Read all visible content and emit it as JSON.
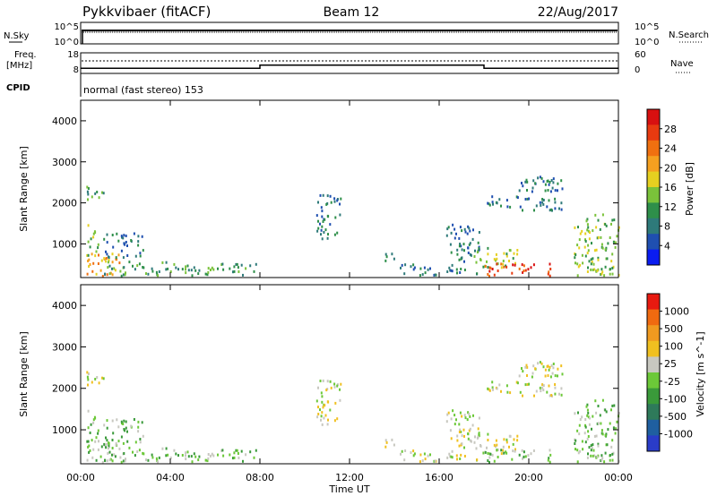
{
  "header": {
    "station": "Pykkvibaer (fitACF)",
    "beam": "Beam 12",
    "date": "22/Aug/2017"
  },
  "noise_panel": {
    "left_label": "N.Sky",
    "left_ticks": [
      "10^5",
      "10^0"
    ],
    "right_label": "N.Search",
    "right_ticks": [
      "10^5",
      "10^0"
    ]
  },
  "freq_panel": {
    "left_label_1": "Freq.",
    "left_label_2": "[MHz]",
    "left_ticks": [
      "18",
      "8"
    ],
    "right_label": "Nave",
    "right_ticks": [
      "60",
      "0"
    ],
    "cpid_label": "CPID"
  },
  "cpid_text": "normal (fast stereo) 153",
  "x_axis": {
    "title": "Time UT",
    "ticks": [
      "00:00",
      "04:00",
      "08:00",
      "12:00",
      "16:00",
      "20:00",
      "00:00"
    ]
  },
  "power_panel": {
    "ylabel": "Slant Range [km]",
    "yticks": [
      "4000",
      "3000",
      "2000",
      "1000"
    ],
    "colorbar_label": "Power [dB]",
    "colorbar_ticks": [
      "28",
      "24",
      "20",
      "16",
      "12",
      "8",
      "4"
    ],
    "colors": [
      "#0a1cf0",
      "#1f4fb0",
      "#2e7a7a",
      "#2e8f4a",
      "#7ac23a",
      "#e6d020",
      "#f5a020",
      "#f07010",
      "#e83a10",
      "#d81010"
    ]
  },
  "velocity_panel": {
    "ylabel": "Slant Range [km]",
    "yticks": [
      "4000",
      "3000",
      "2000",
      "1000"
    ],
    "colorbar_label": "Velocity [m s^-1]",
    "colorbar_ticks": [
      "1000",
      "500",
      "100",
      "25",
      "-25",
      "-100",
      "-500",
      "-1000"
    ],
    "colors": [
      "#2a3cc8",
      "#1f5fa0",
      "#2e7a5a",
      "#3a9a3a",
      "#6cc838",
      "#c8c8c0",
      "#f0c020",
      "#f09a20",
      "#f06a10",
      "#e81a10"
    ]
  },
  "chart_data": {
    "type": "heatmap",
    "x_range_hours": [
      0,
      24
    ],
    "y_range_km": [
      180,
      4500
    ],
    "freq_range_mhz": [
      8,
      18
    ],
    "nave_range": [
      0,
      60
    ],
    "frequency_steps": [
      {
        "x_hours": 0,
        "freq_mhz": 10.5
      },
      {
        "x_hours": 8.0,
        "freq_mhz": 12.0
      },
      {
        "x_hours": 18.0,
        "freq_mhz": 10.5
      }
    ],
    "power_scale_db": [
      0,
      30
    ],
    "velocity_scale_ms": [
      -1000,
      1000
    ],
    "scatter_regions": [
      {
        "t0": 0.0,
        "t1": 1.7,
        "r0": 200,
        "r1": 750,
        "power": 18,
        "velocity": -80
      },
      {
        "t0": 0.2,
        "t1": 1.0,
        "r0": 2050,
        "r1": 2450,
        "power": 10,
        "velocity": 0
      },
      {
        "t0": 0.3,
        "t1": 0.8,
        "r0": 700,
        "r1": 1500,
        "power": 12,
        "velocity": -30
      },
      {
        "t0": 1.0,
        "t1": 2.8,
        "r0": 650,
        "r1": 1250,
        "power": 8,
        "velocity": -60
      },
      {
        "t0": 1.0,
        "t1": 4.0,
        "r0": 200,
        "r1": 550,
        "power": 10,
        "velocity": -90
      },
      {
        "t0": 4.0,
        "t1": 8.0,
        "r0": 200,
        "r1": 500,
        "power": 10,
        "velocity": -70
      },
      {
        "t0": 10.5,
        "t1": 11.6,
        "r0": 1100,
        "r1": 2200,
        "power": 6,
        "velocity": 0
      },
      {
        "t0": 13.5,
        "t1": 14.0,
        "r0": 500,
        "r1": 800,
        "power": 8,
        "velocity": 60
      },
      {
        "t0": 14.2,
        "t1": 16.0,
        "r0": 200,
        "r1": 500,
        "power": 6,
        "velocity": 20
      },
      {
        "t0": 16.3,
        "t1": 17.8,
        "r0": 250,
        "r1": 1450,
        "power": 8,
        "velocity": 70
      },
      {
        "t0": 17.5,
        "t1": 19.5,
        "r0": 400,
        "r1": 900,
        "power": 14,
        "velocity": 120
      },
      {
        "t0": 18.0,
        "t1": 21.0,
        "r0": 200,
        "r1": 500,
        "power": 24,
        "velocity": -40
      },
      {
        "t0": 18.0,
        "t1": 19.5,
        "r0": 1850,
        "r1": 2150,
        "power": 8,
        "velocity": 0
      },
      {
        "t0": 19.5,
        "t1": 21.5,
        "r0": 1800,
        "r1": 2650,
        "power": 8,
        "velocity": 0
      },
      {
        "t0": 22.0,
        "t1": 24.0,
        "r0": 200,
        "r1": 1700,
        "power": 12,
        "velocity": -20
      }
    ]
  }
}
